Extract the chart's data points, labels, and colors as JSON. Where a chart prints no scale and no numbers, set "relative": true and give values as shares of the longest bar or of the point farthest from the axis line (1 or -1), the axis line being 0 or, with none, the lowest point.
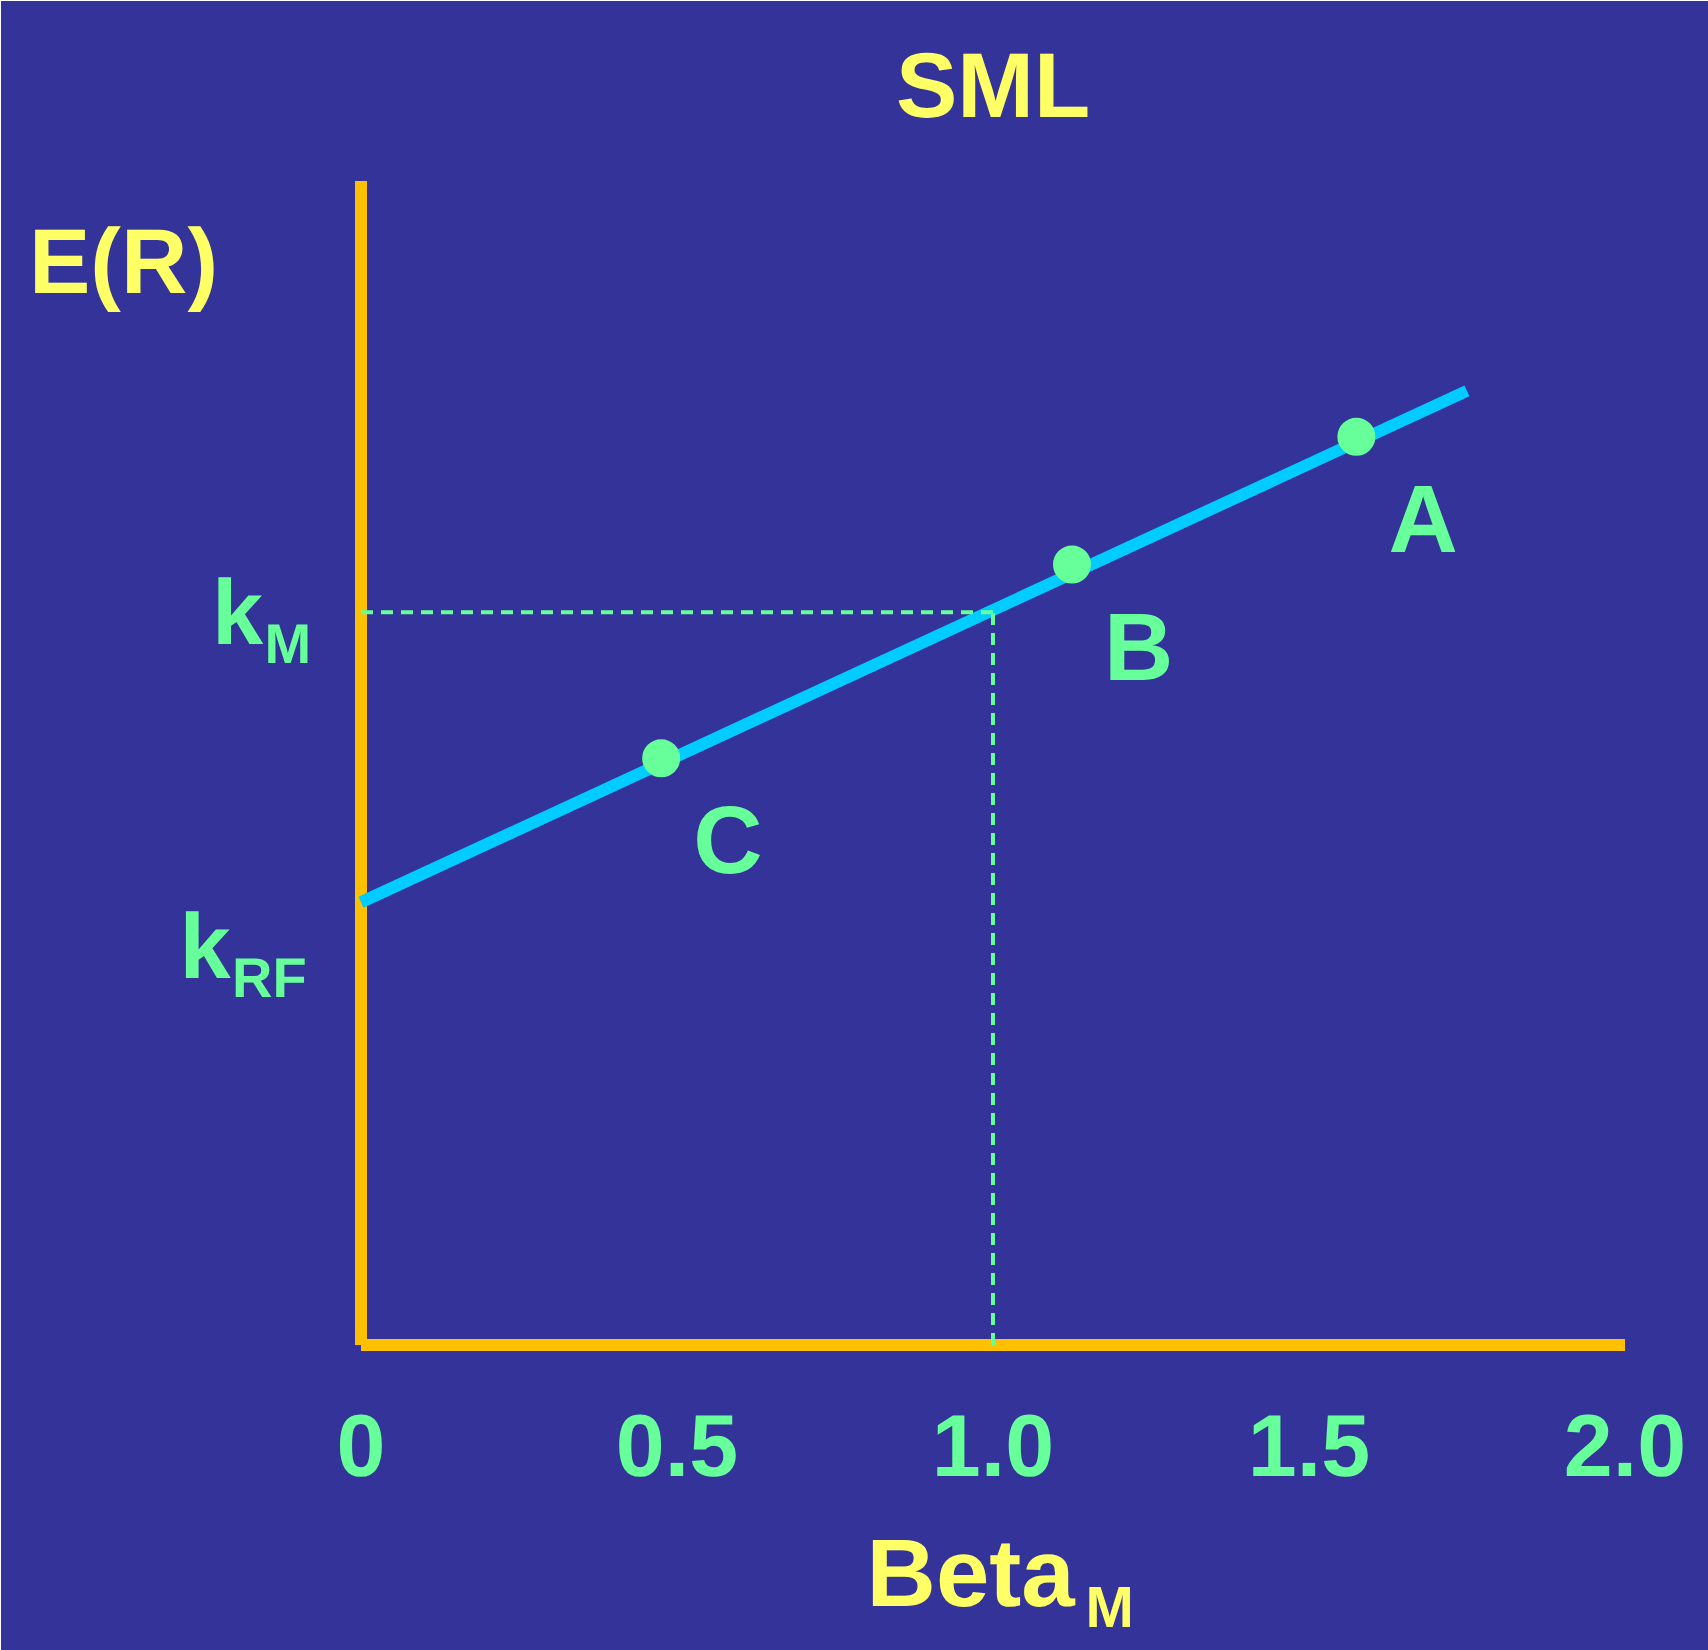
{
  "chart_data": {
    "type": "line",
    "title": "SML",
    "xlabel": "Beta$_{M}$",
    "ylabel": "E(R)",
    "relative": true,
    "xlim": [
      0,
      2.0
    ],
    "xticks": [
      0,
      0.5,
      {
        "value": 1,
        "label": "1.0"
      },
      1.5,
      {
        "value": 2,
        "label": "2.0"
      }
    ],
    "grid": false,
    "series": [
      {
        "color": "#00ccff",
        "x": [
          0,
          1.75
        ],
        "values": [
          0.464,
          1.0
        ],
        "marker": "none"
      },
      {
        "type": "scatter",
        "color": "#66ff99",
        "x": [
          1.575,
          1.125,
          0.475
        ],
        "values": [
          0.952,
          0.818,
          0.615
        ],
        "marker": "circle"
      }
    ],
    "ref_lines": [
      {
        "axis": "y",
        "value": 0.768,
        "label": "k$_{M}$",
        "color": "#66ff99",
        "line_style": "dashed"
      },
      {
        "axis": "x",
        "value": 1.0,
        "color": "#66ff99",
        "line_style": "dashed"
      }
    ],
    "annotations": [
      {
        "text": "k$_{RF}$",
        "x": 0,
        "y": 0.464
      },
      {
        "text": "A",
        "x": 1.575,
        "y": 0.952
      },
      {
        "text": "B",
        "x": 1.125,
        "y": 0.818
      },
      {
        "text": "C",
        "x": 0.475,
        "y": 0.615
      }
    ]
  }
}
